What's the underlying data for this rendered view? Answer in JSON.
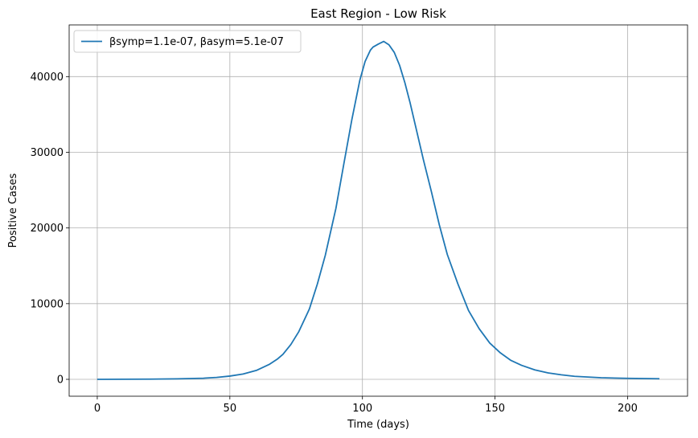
{
  "chart_data": {
    "type": "line",
    "title": "East Region - Low Risk",
    "xlabel": "Time (days)",
    "ylabel": "Positive Cases",
    "xlim": [
      -10.6,
      222.6
    ],
    "ylim": [
      -2230,
      46830
    ],
    "xticks": [
      0,
      50,
      100,
      150,
      200
    ],
    "yticks": [
      0,
      10000,
      20000,
      30000,
      40000
    ],
    "grid": true,
    "legend_position": "top-left",
    "series": [
      {
        "name": "βsymp=1.1e-07, βasym=5.1e-07",
        "color": "#1f77b4",
        "x": [
          0,
          10,
          20,
          30,
          40,
          45,
          50,
          55,
          60,
          65,
          68,
          70,
          73,
          76,
          80,
          83,
          86,
          90,
          93,
          96,
          99,
          101,
          103,
          104,
          106,
          108,
          110,
          112,
          114,
          116,
          118,
          120,
          123,
          126,
          129,
          132,
          136,
          140,
          144,
          148,
          152,
          156,
          160,
          165,
          170,
          175,
          180,
          190,
          200,
          212
        ],
        "y": [
          0,
          10,
          30,
          70,
          150,
          250,
          430,
          700,
          1180,
          2000,
          2700,
          3300,
          4600,
          6300,
          9300,
          12600,
          16400,
          22600,
          28500,
          34300,
          39500,
          42000,
          43500,
          43900,
          44300,
          44650,
          44200,
          43200,
          41500,
          39200,
          36500,
          33500,
          29000,
          24800,
          20400,
          16500,
          12600,
          9100,
          6700,
          4800,
          3500,
          2500,
          1850,
          1250,
          850,
          600,
          400,
          210,
          130,
          80
        ]
      }
    ]
  }
}
